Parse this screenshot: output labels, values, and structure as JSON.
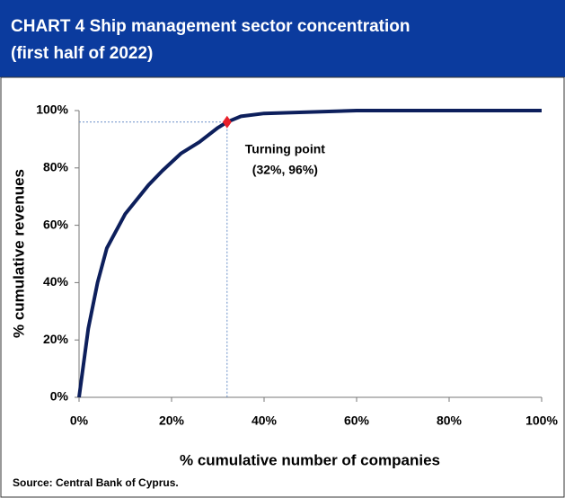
{
  "chart_data": {
    "type": "line",
    "title": "CHART 4  Ship management sector concentration",
    "subtitle": "(first half of 2022)",
    "x_label": "% cumulative number of companies",
    "y_label": "% cumulative revenues",
    "source": "Source: Central Bank of Cyprus.",
    "x": [
      0,
      2,
      4,
      6,
      8,
      10,
      12,
      15,
      18,
      22,
      26,
      30,
      32,
      35,
      40,
      50,
      60,
      100
    ],
    "values": [
      0,
      24,
      40,
      52,
      58,
      64,
      68,
      74,
      79,
      85,
      89,
      94,
      96,
      98,
      99,
      99.5,
      100,
      100
    ],
    "color": "#0d1f5c",
    "xlim": [
      0,
      100
    ],
    "ylim": [
      0,
      100
    ],
    "xticks": [
      {
        "value": 0,
        "label": "0%"
      },
      {
        "value": 20,
        "label": "20%"
      },
      {
        "value": 40,
        "label": "40%"
      },
      {
        "value": 60,
        "label": "60%"
      },
      {
        "value": 80,
        "label": "80%"
      },
      {
        "value": 100,
        "label": "100%"
      }
    ],
    "yticks": [
      {
        "value": 0,
        "label": "0%"
      },
      {
        "value": 20,
        "label": "20%"
      },
      {
        "value": 40,
        "label": "40%"
      },
      {
        "value": 60,
        "label": "60%"
      },
      {
        "value": 80,
        "label": "80%"
      },
      {
        "value": 100,
        "label": "100%"
      }
    ],
    "turning_point": {
      "x": 32,
      "y": 96,
      "label": "Turning point",
      "value_label": "(32%, 96%)",
      "color": "#e8202a"
    }
  }
}
